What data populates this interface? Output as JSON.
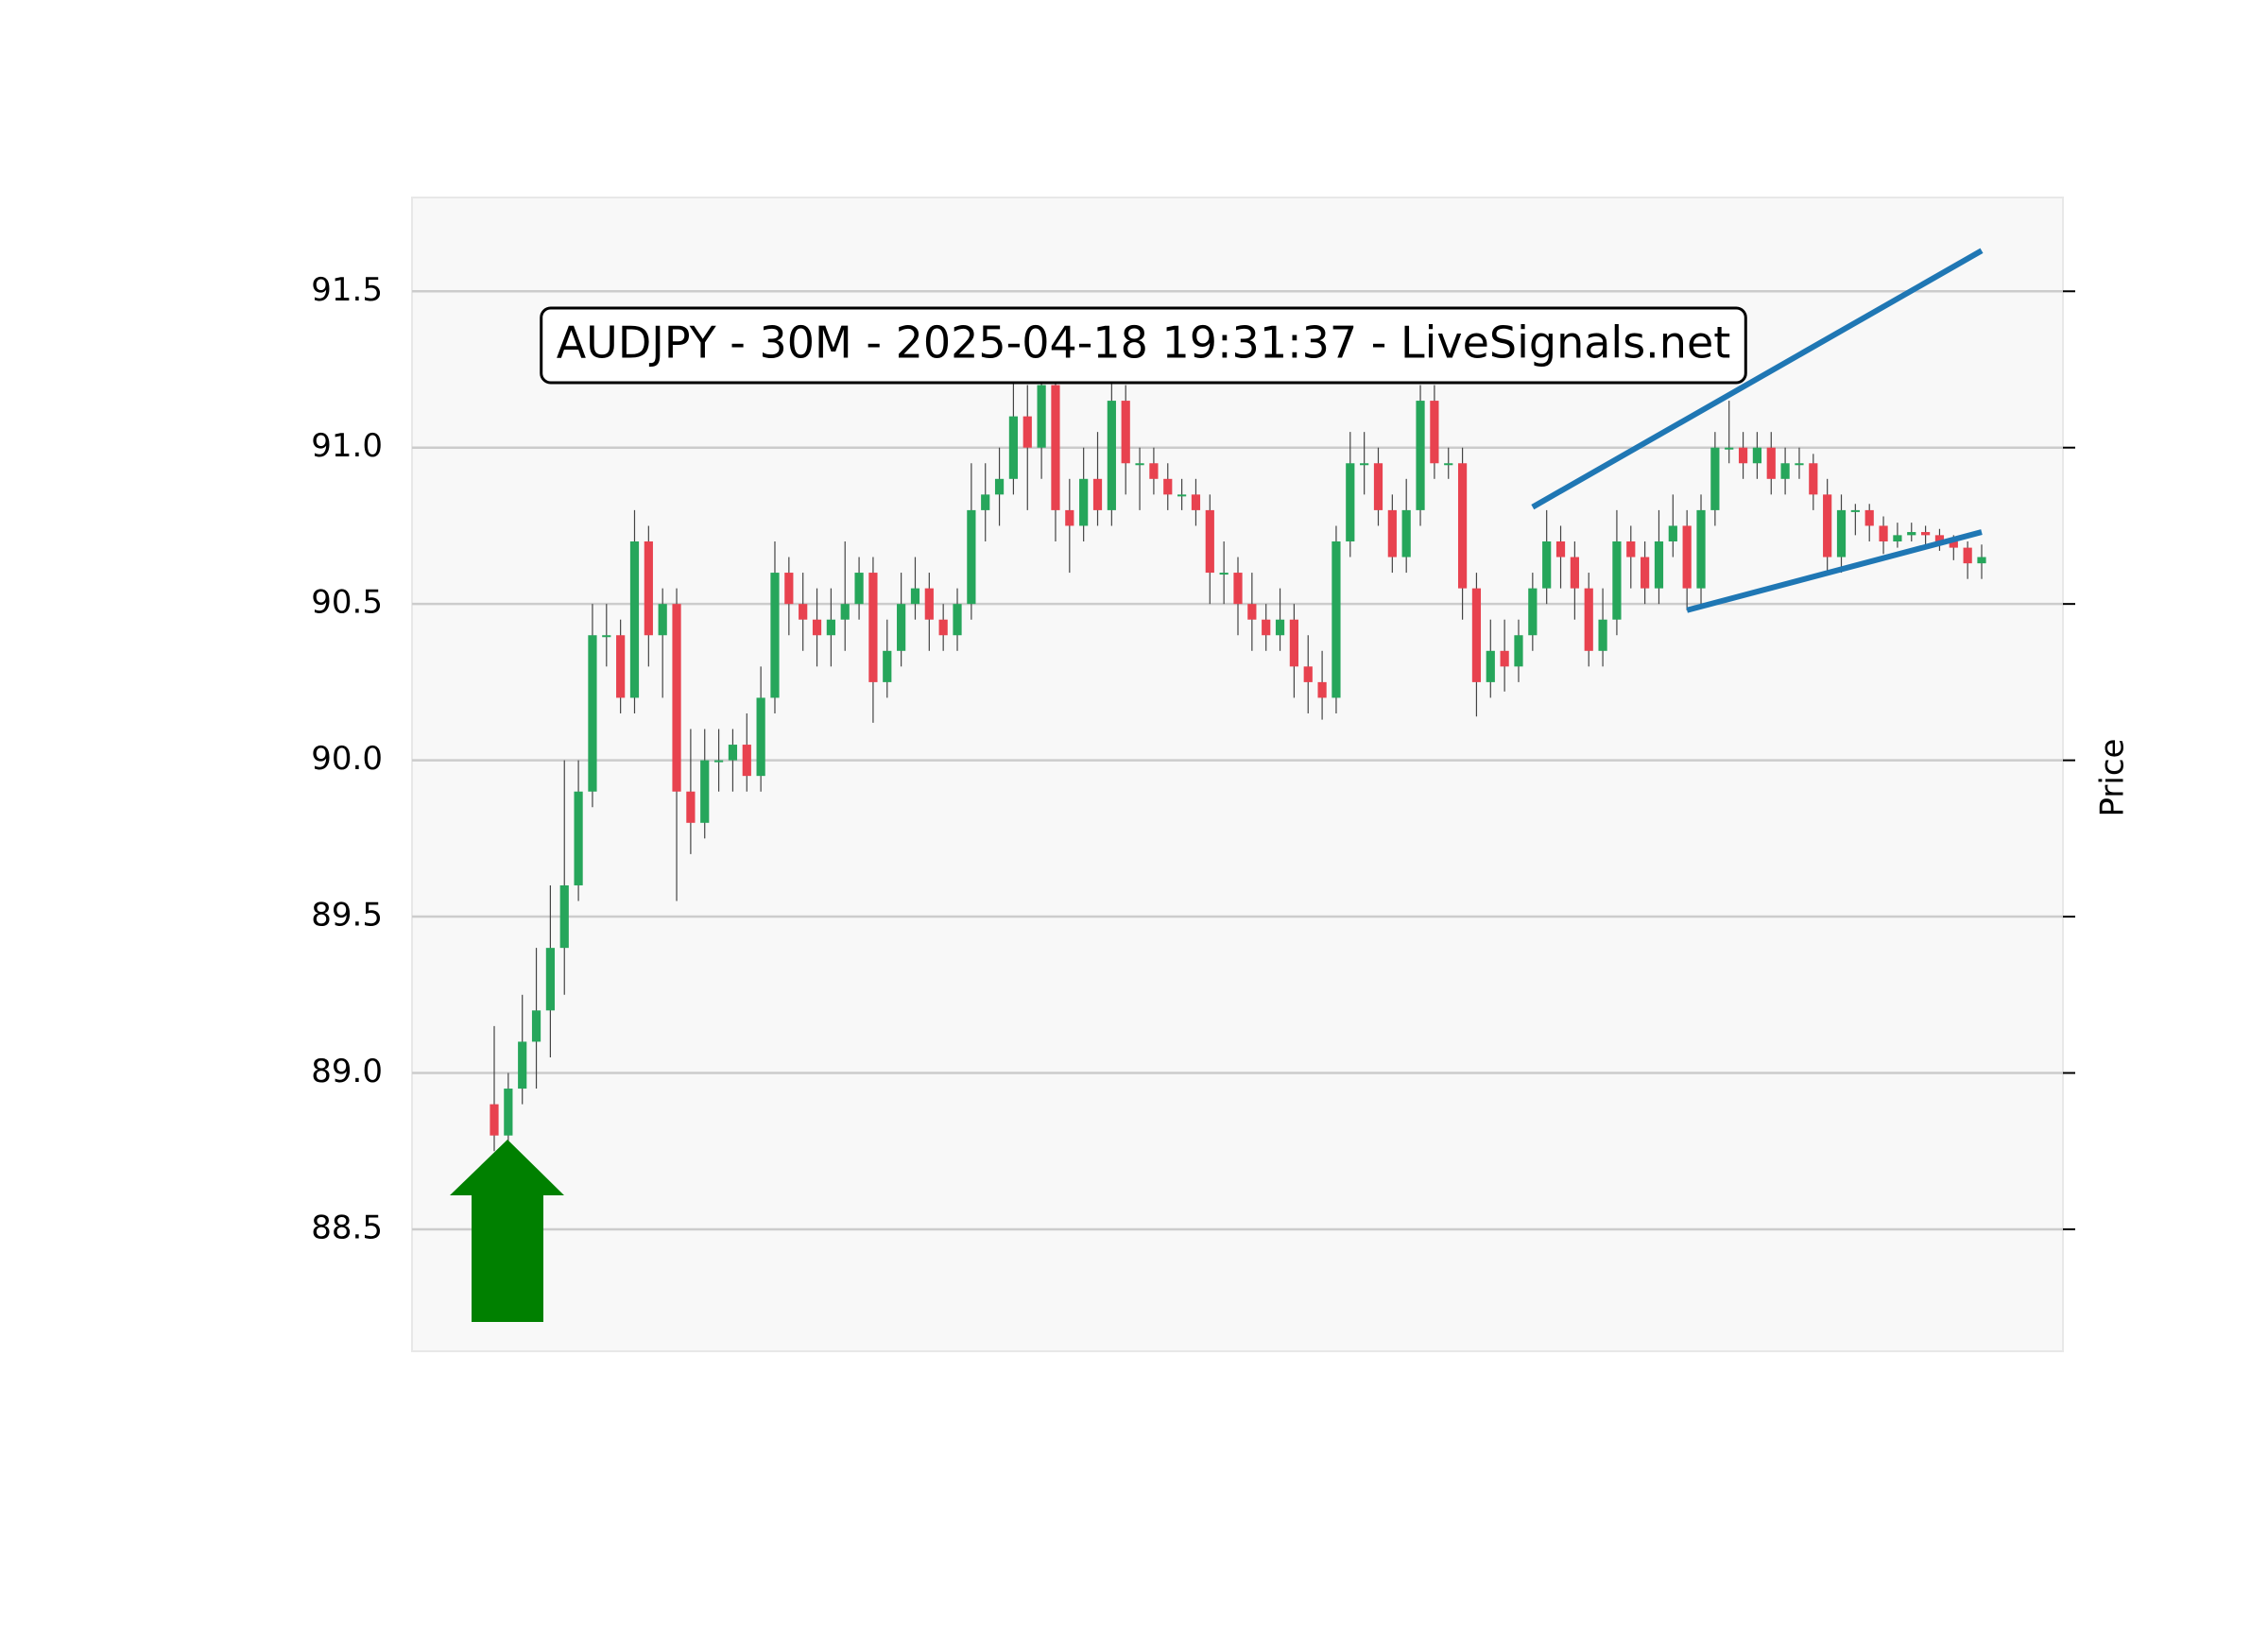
{
  "chart_data": {
    "type": "candlestick",
    "title": "AUDJPY - 30M - 2025-04-18 19:31:37 - LiveSignals.net",
    "y_label": "Price",
    "ylim": [
      88.11,
      91.8
    ],
    "yticks": [
      {
        "value": 88.5,
        "label": "88.5"
      },
      {
        "value": 89.0,
        "label": "89.0"
      },
      {
        "value": 89.5,
        "label": "89.5"
      },
      {
        "value": 90.0,
        "label": "90.0"
      },
      {
        "value": 90.5,
        "label": "90.5"
      },
      {
        "value": 91.0,
        "label": "91.0"
      },
      {
        "value": 91.5,
        "label": "91.5"
      }
    ],
    "grid": true,
    "up_color": "#26a65b",
    "down_color": "#e8424f",
    "open": [
      88.9,
      88.8,
      88.95,
      89.1,
      89.2,
      89.4,
      89.6,
      89.9,
      90.4,
      90.4,
      90.2,
      90.7,
      90.4,
      90.5,
      89.9,
      89.8,
      90.0,
      90.0,
      90.05,
      89.95,
      90.2,
      90.6,
      90.5,
      90.45,
      90.4,
      90.45,
      90.5,
      90.6,
      90.25,
      90.35,
      90.5,
      90.55,
      90.45,
      90.4,
      90.5,
      90.8,
      90.85,
      90.9,
      91.1,
      91.0,
      91.2,
      90.8,
      90.75,
      90.9,
      90.8,
      91.15,
      90.95,
      90.95,
      90.9,
      90.85,
      90.85,
      90.8,
      90.6,
      90.6,
      90.5,
      90.45,
      90.4,
      90.45,
      90.3,
      90.25,
      90.2,
      90.7,
      90.95,
      90.95,
      90.8,
      90.65,
      90.8,
      91.15,
      90.95,
      90.95,
      90.55,
      90.25,
      90.35,
      90.3,
      90.4,
      90.55,
      90.7,
      90.65,
      90.55,
      90.35,
      90.45,
      90.7,
      90.65,
      90.55,
      90.7,
      90.75,
      90.55,
      90.8,
      91.0,
      91.0,
      90.95,
      91.0,
      90.9,
      90.95,
      90.95,
      90.85,
      90.65,
      90.8,
      90.8,
      90.75,
      90.7,
      90.72,
      90.73,
      90.72,
      90.7,
      90.68,
      90.63
    ],
    "high": [
      89.15,
      89.0,
      89.25,
      89.4,
      89.6,
      90.0,
      90.0,
      90.5,
      90.5,
      90.45,
      90.8,
      90.75,
      90.55,
      90.55,
      90.1,
      90.1,
      90.1,
      90.1,
      90.15,
      90.3,
      90.7,
      90.65,
      90.6,
      90.55,
      90.55,
      90.7,
      90.65,
      90.65,
      90.45,
      90.6,
      90.65,
      90.6,
      90.5,
      90.55,
      90.95,
      90.95,
      91.0,
      91.25,
      91.2,
      91.3,
      91.25,
      90.9,
      91.0,
      91.05,
      91.3,
      91.2,
      91.0,
      91.0,
      90.95,
      90.9,
      90.9,
      90.85,
      90.7,
      90.65,
      90.6,
      90.5,
      90.55,
      90.5,
      90.4,
      90.35,
      90.75,
      91.05,
      91.05,
      91.0,
      90.85,
      90.9,
      91.2,
      91.2,
      91.0,
      91.0,
      90.6,
      90.45,
      90.45,
      90.45,
      90.6,
      90.8,
      90.75,
      90.7,
      90.6,
      90.55,
      90.8,
      90.75,
      90.7,
      90.8,
      90.85,
      90.8,
      90.85,
      91.05,
      91.15,
      91.05,
      91.05,
      91.05,
      91.0,
      91.0,
      90.98,
      90.9,
      90.85,
      90.82,
      90.82,
      90.78,
      90.76,
      90.76,
      90.75,
      90.74,
      90.72,
      90.7,
      90.69
    ],
    "low": [
      88.75,
      88.75,
      88.9,
      88.95,
      89.05,
      89.25,
      89.55,
      89.85,
      90.3,
      90.15,
      90.15,
      90.3,
      90.2,
      89.55,
      89.7,
      89.75,
      89.9,
      89.9,
      89.9,
      89.9,
      90.15,
      90.4,
      90.35,
      90.3,
      90.3,
      90.35,
      90.45,
      90.12,
      90.2,
      90.3,
      90.45,
      90.35,
      90.35,
      90.35,
      90.45,
      90.7,
      90.75,
      90.85,
      90.8,
      90.9,
      90.7,
      90.6,
      90.7,
      90.75,
      90.75,
      90.85,
      90.8,
      90.85,
      90.8,
      90.8,
      90.75,
      90.5,
      90.5,
      90.4,
      90.35,
      90.35,
      90.35,
      90.2,
      90.15,
      90.13,
      90.15,
      90.65,
      90.85,
      90.75,
      90.6,
      90.6,
      90.75,
      90.9,
      90.9,
      90.45,
      90.14,
      90.2,
      90.22,
      90.25,
      90.35,
      90.5,
      90.55,
      90.45,
      90.3,
      90.3,
      90.4,
      90.55,
      90.5,
      90.5,
      90.65,
      90.48,
      90.5,
      90.75,
      90.95,
      90.9,
      90.9,
      90.85,
      90.85,
      90.9,
      90.8,
      90.6,
      90.6,
      90.72,
      90.7,
      90.66,
      90.68,
      90.7,
      90.69,
      90.67,
      90.64,
      90.58,
      90.58
    ],
    "close": [
      88.8,
      88.95,
      89.1,
      89.2,
      89.4,
      89.6,
      89.9,
      90.4,
      90.4,
      90.2,
      90.7,
      90.4,
      90.5,
      89.9,
      89.8,
      90.0,
      90.0,
      90.05,
      89.95,
      90.2,
      90.6,
      90.5,
      90.45,
      90.4,
      90.45,
      90.5,
      90.6,
      90.25,
      90.35,
      90.5,
      90.55,
      90.45,
      90.4,
      90.5,
      90.8,
      90.85,
      90.9,
      91.1,
      91.0,
      91.2,
      90.8,
      90.75,
      90.9,
      90.8,
      91.15,
      90.95,
      90.95,
      90.9,
      90.85,
      90.85,
      90.8,
      90.6,
      90.6,
      90.5,
      90.45,
      90.4,
      90.45,
      90.3,
      90.25,
      90.2,
      90.7,
      90.95,
      90.95,
      90.8,
      90.65,
      90.8,
      91.15,
      90.95,
      90.95,
      90.55,
      90.25,
      90.35,
      90.3,
      90.4,
      90.55,
      90.7,
      90.65,
      90.55,
      90.35,
      90.45,
      90.7,
      90.65,
      90.55,
      90.7,
      90.75,
      90.55,
      90.8,
      91.0,
      91.0,
      90.95,
      91.0,
      90.9,
      90.95,
      90.95,
      90.85,
      90.65,
      90.8,
      90.8,
      90.75,
      90.7,
      90.72,
      90.73,
      90.72,
      90.7,
      90.68,
      90.63,
      90.65
    ],
    "trendlines": [
      {
        "x": [
          74,
          106
        ],
        "y": [
          90.81,
          91.63
        ],
        "color": "#1f77b4"
      },
      {
        "x": [
          85,
          106
        ],
        "y": [
          90.48,
          90.73
        ],
        "color": "#1f77b4"
      }
    ]
  }
}
